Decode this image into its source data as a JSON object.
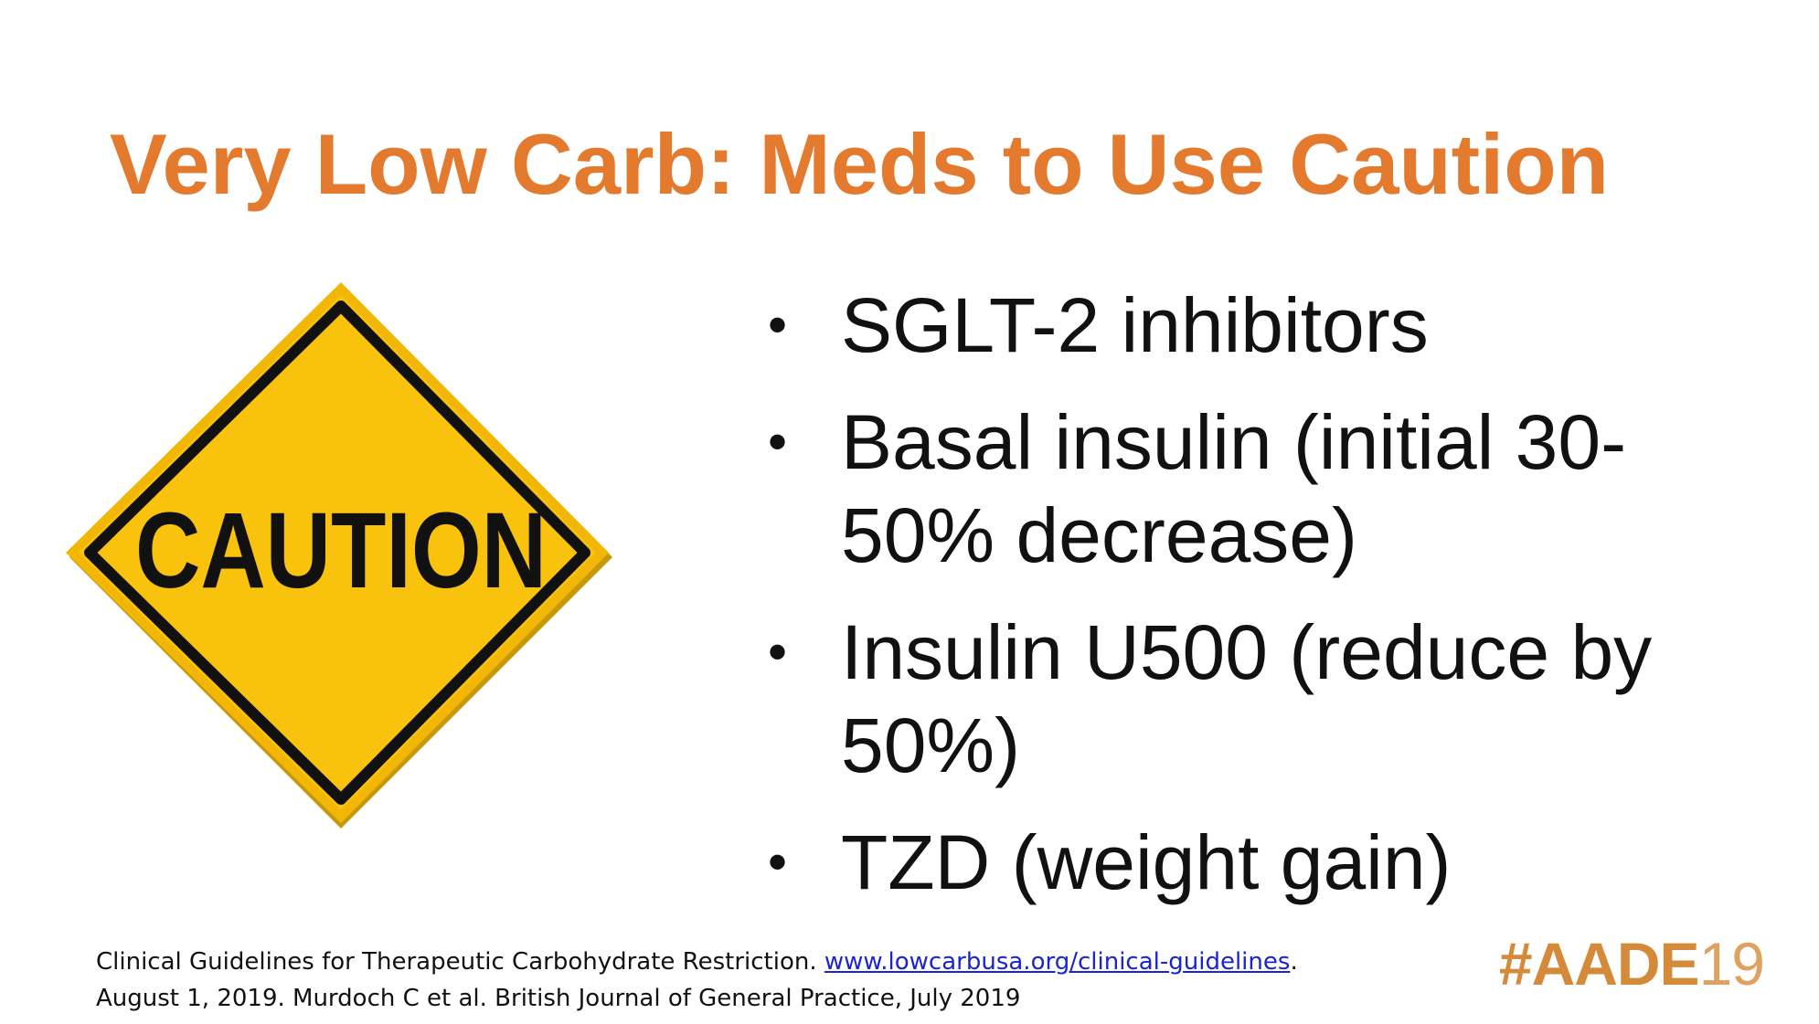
{
  "title": "Very Low Carb: Meds to Use Caution",
  "sign": {
    "text": "CAUTION",
    "fill_color": "#F9C20D",
    "border_color": "#111111"
  },
  "bullets": [
    {
      "text": "SGLT-2 inhibitors"
    },
    {
      "text": "Basal insulin (initial 30-50% decrease)"
    },
    {
      "text": "Insulin U500 (reduce by 50%)"
    },
    {
      "text": "TZD (weight gain)"
    }
  ],
  "bullet_symbol": "•",
  "footer": {
    "line1_prefix": "Clinical Guidelines for Therapeutic Carbohydrate Restriction. ",
    "line1_link": "www.lowcarbusa.org/clinical-guidelines",
    "line1_suffix": ".",
    "line2": "August 1, 2019.  Murdoch C et al. British Journal of General Practice, July 2019"
  },
  "hashtag": {
    "main": "#AADE",
    "year": "19"
  },
  "colors": {
    "title": "#E37A2E",
    "link": "#1a23d6",
    "hashtag": "#D58A3A"
  }
}
